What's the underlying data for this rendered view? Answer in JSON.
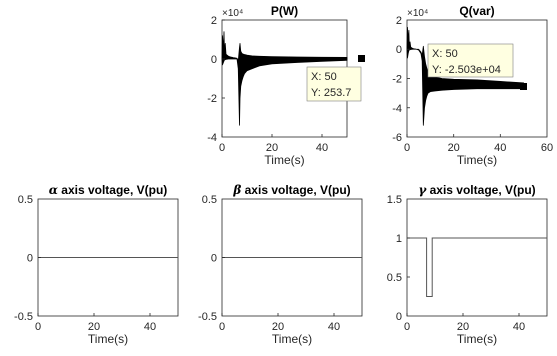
{
  "figure": {
    "background": "#ffffff",
    "axes_color": "#262626",
    "line_color": "#000000",
    "datatip_fill": "#ffffe1"
  },
  "chart_data": [
    {
      "type": "line",
      "title": "P(W)",
      "xlabel": "Time(s)",
      "ylabel": "",
      "exponent_label": "×10⁴",
      "xlim": [
        0,
        50
      ],
      "ylim": [
        -40000,
        20000
      ],
      "xticks": [
        "0",
        "20",
        "40"
      ],
      "yticks": [
        "2",
        "0",
        "-2",
        "-4"
      ],
      "grid": false,
      "legend": "none",
      "series": [
        {
          "x": [
            0,
            0.2,
            0.5,
            0.8,
            1.0,
            1.3,
            1.6,
            2.0,
            2.5,
            3.0,
            3.5,
            4.0,
            4.5,
            5.0,
            6.0,
            6.5,
            7.0,
            7.2,
            7.5,
            8.0,
            8.5,
            9.0,
            10,
            12,
            15,
            20,
            30,
            40,
            50
          ],
          "y_upper": [
            0,
            12000,
            5000,
            14000,
            3000,
            8000,
            2500,
            2000,
            1500,
            1200,
            1000,
            900,
            700,
            600,
            400,
            -1000,
            6000,
            8000,
            4000,
            2800,
            2500,
            2300,
            2000,
            1600,
            1400,
            1200,
            1000,
            900,
            800
          ],
          "y_lower": [
            0,
            -3000,
            -2000,
            -1000,
            -500,
            -300,
            -200,
            -100,
            0,
            0,
            0,
            0,
            0,
            0,
            0,
            -5000,
            -34000,
            -20000,
            -14000,
            -11000,
            -9000,
            -7500,
            -6000,
            -5000,
            -3500,
            -2500,
            -1800,
            -1200,
            -700
          ]
        }
      ],
      "annotations": [
        {
          "x": 50,
          "y": 253.7,
          "text": [
            "X: 50",
            "Y: 253.7"
          ]
        }
      ]
    },
    {
      "type": "line",
      "title": "Q(var)",
      "xlabel": "Time(s)",
      "ylabel": "",
      "exponent_label": "×10⁴",
      "xlim": [
        0,
        60
      ],
      "ylim": [
        -60000,
        20000
      ],
      "xticks": [
        "0",
        "20",
        "40",
        "60"
      ],
      "yticks": [
        "2",
        "0",
        "-2",
        "-4",
        "-6"
      ],
      "grid": false,
      "legend": "none",
      "series": [
        {
          "x": [
            0,
            0.2,
            0.5,
            0.8,
            1.0,
            1.3,
            1.6,
            2.0,
            2.5,
            3.0,
            4.0,
            5.0,
            6.0,
            6.5,
            7.0,
            7.5,
            8.0,
            8.5,
            9.0,
            10,
            12,
            15,
            20,
            30,
            40,
            50
          ],
          "y_upper": [
            0,
            15000,
            6000,
            13000,
            2000,
            5000,
            1500,
            1000,
            500,
            300,
            100,
            0,
            -2000,
            -4000,
            2000,
            -5000,
            -10000,
            -13000,
            -15000,
            -17000,
            -19000,
            -20000,
            -20500,
            -21000,
            -22000,
            -23000
          ],
          "y_lower": [
            0,
            -6000,
            -3000,
            -1000,
            -500,
            -300,
            -200,
            -100,
            0,
            0,
            0,
            -500,
            -3000,
            -8000,
            -52000,
            -40000,
            -35000,
            -32000,
            -30000,
            -29000,
            -28500,
            -28000,
            -27500,
            -27000,
            -27000,
            -27000
          ]
        }
      ],
      "annotations": [
        {
          "x": 50,
          "y": -25030,
          "text": [
            "X: 50",
            "Y: -2.503e+04"
          ]
        }
      ]
    },
    {
      "type": "line",
      "title_symbol": "α",
      "title": " axis voltage, V(pu)",
      "xlabel": "Time(s)",
      "ylabel": "",
      "xlim": [
        0,
        50
      ],
      "ylim": [
        -0.5,
        0.5
      ],
      "xticks": [
        "0",
        "20",
        "40"
      ],
      "yticks": [
        "0.5",
        "0",
        "-0.5"
      ],
      "grid": false,
      "legend": "none",
      "series": [
        {
          "x": [
            0,
            50
          ],
          "y": [
            0,
            0
          ]
        }
      ]
    },
    {
      "type": "line",
      "title_symbol": "β",
      "title": " axis voltage, V(pu)",
      "xlabel": "Time(s)",
      "ylabel": "",
      "xlim": [
        0,
        50
      ],
      "ylim": [
        -0.5,
        0.5
      ],
      "xticks": [
        "0",
        "20",
        "40"
      ],
      "yticks": [
        "0.5",
        "0",
        "-0.5"
      ],
      "grid": false,
      "legend": "none",
      "series": [
        {
          "x": [
            0,
            50
          ],
          "y": [
            0,
            0
          ]
        }
      ]
    },
    {
      "type": "line",
      "title_symbol": "γ",
      "title": " axis voltage, V(pu)",
      "xlabel": "Time(s)",
      "ylabel": "",
      "xlim": [
        0,
        50
      ],
      "ylim": [
        0,
        1.5
      ],
      "xticks": [
        "0",
        "20",
        "40"
      ],
      "yticks": [
        "1.5",
        "1",
        "0.5",
        "0"
      ],
      "grid": false,
      "legend": "none",
      "series": [
        {
          "x": [
            0,
            7,
            7,
            9,
            9,
            50
          ],
          "y": [
            1,
            1,
            0.25,
            0.25,
            1,
            1
          ]
        }
      ]
    }
  ]
}
